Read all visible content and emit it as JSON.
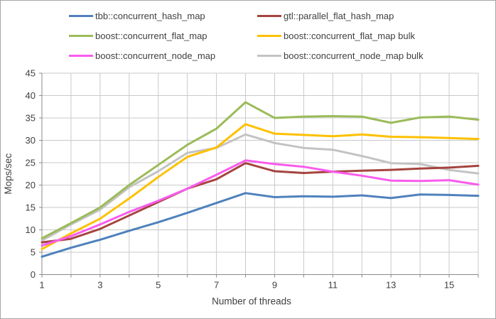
{
  "chart_data": {
    "type": "line",
    "title": "",
    "xlabel": "Number of threads",
    "ylabel": "Mops/sec",
    "x": [
      1,
      2,
      3,
      4,
      5,
      6,
      7,
      8,
      9,
      10,
      11,
      12,
      13,
      14,
      15,
      16
    ],
    "x_tick_labels": [
      1,
      3,
      5,
      7,
      9,
      11,
      13,
      15
    ],
    "xlim": [
      1,
      16
    ],
    "ylim": [
      0,
      45
    ],
    "y_tick_step": 5,
    "grid": "vertical gridline at every thread count, horizontal every 5 Mops/sec",
    "legend_position": "top, two columns",
    "series": [
      {
        "name": "tbb::concurrent_hash_map",
        "color": "#4f81bd",
        "values": [
          4.0,
          6.0,
          7.8,
          9.8,
          11.7,
          13.8,
          16.0,
          18.2,
          17.3,
          17.5,
          17.4,
          17.7,
          17.1,
          17.9,
          17.8,
          17.6
        ]
      },
      {
        "name": "gtl::parallel_flat_hash_map",
        "color": "#a5443f",
        "values": [
          7.2,
          8.0,
          10.2,
          13.2,
          16.2,
          19.2,
          21.3,
          24.9,
          23.1,
          22.7,
          23.0,
          23.2,
          23.4,
          23.7,
          23.9,
          24.3
        ]
      },
      {
        "name": "boost::concurrent_flat_map",
        "color": "#9bbb59",
        "values": [
          8.1,
          11.5,
          15.0,
          20.0,
          24.5,
          29.0,
          32.6,
          38.5,
          35.0,
          35.3,
          35.4,
          35.3,
          33.9,
          35.1,
          35.3,
          34.6
        ]
      },
      {
        "name": "boost::concurrent_flat_map bulk",
        "color": "#ffc000",
        "values": [
          5.7,
          9.2,
          12.5,
          17.0,
          21.8,
          26.3,
          28.4,
          33.6,
          31.5,
          31.2,
          30.9,
          31.3,
          30.8,
          30.7,
          30.5,
          30.3
        ]
      },
      {
        "name": "boost::concurrent_node_map",
        "color": "#f95cee",
        "values": [
          6.5,
          8.6,
          11.2,
          14.0,
          16.5,
          19.2,
          22.3,
          25.5,
          24.7,
          24.1,
          23.0,
          22.1,
          21.0,
          20.9,
          21.1,
          20.1
        ]
      },
      {
        "name": "boost::concurrent_node_map bulk",
        "color": "#c3c3c3",
        "values": [
          7.6,
          11.2,
          14.5,
          19.5,
          23.1,
          27.2,
          28.3,
          31.3,
          29.4,
          28.3,
          27.9,
          26.5,
          24.9,
          24.7,
          23.4,
          22.6
        ]
      }
    ]
  },
  "colors": {
    "background": "#ffffff",
    "frame_border": "#a6a6a6",
    "axis_line": "#898989",
    "gridline": "#c9c9c9",
    "tick_text": "#3f3f3f",
    "axis_title_text": "#3f3f3f"
  }
}
